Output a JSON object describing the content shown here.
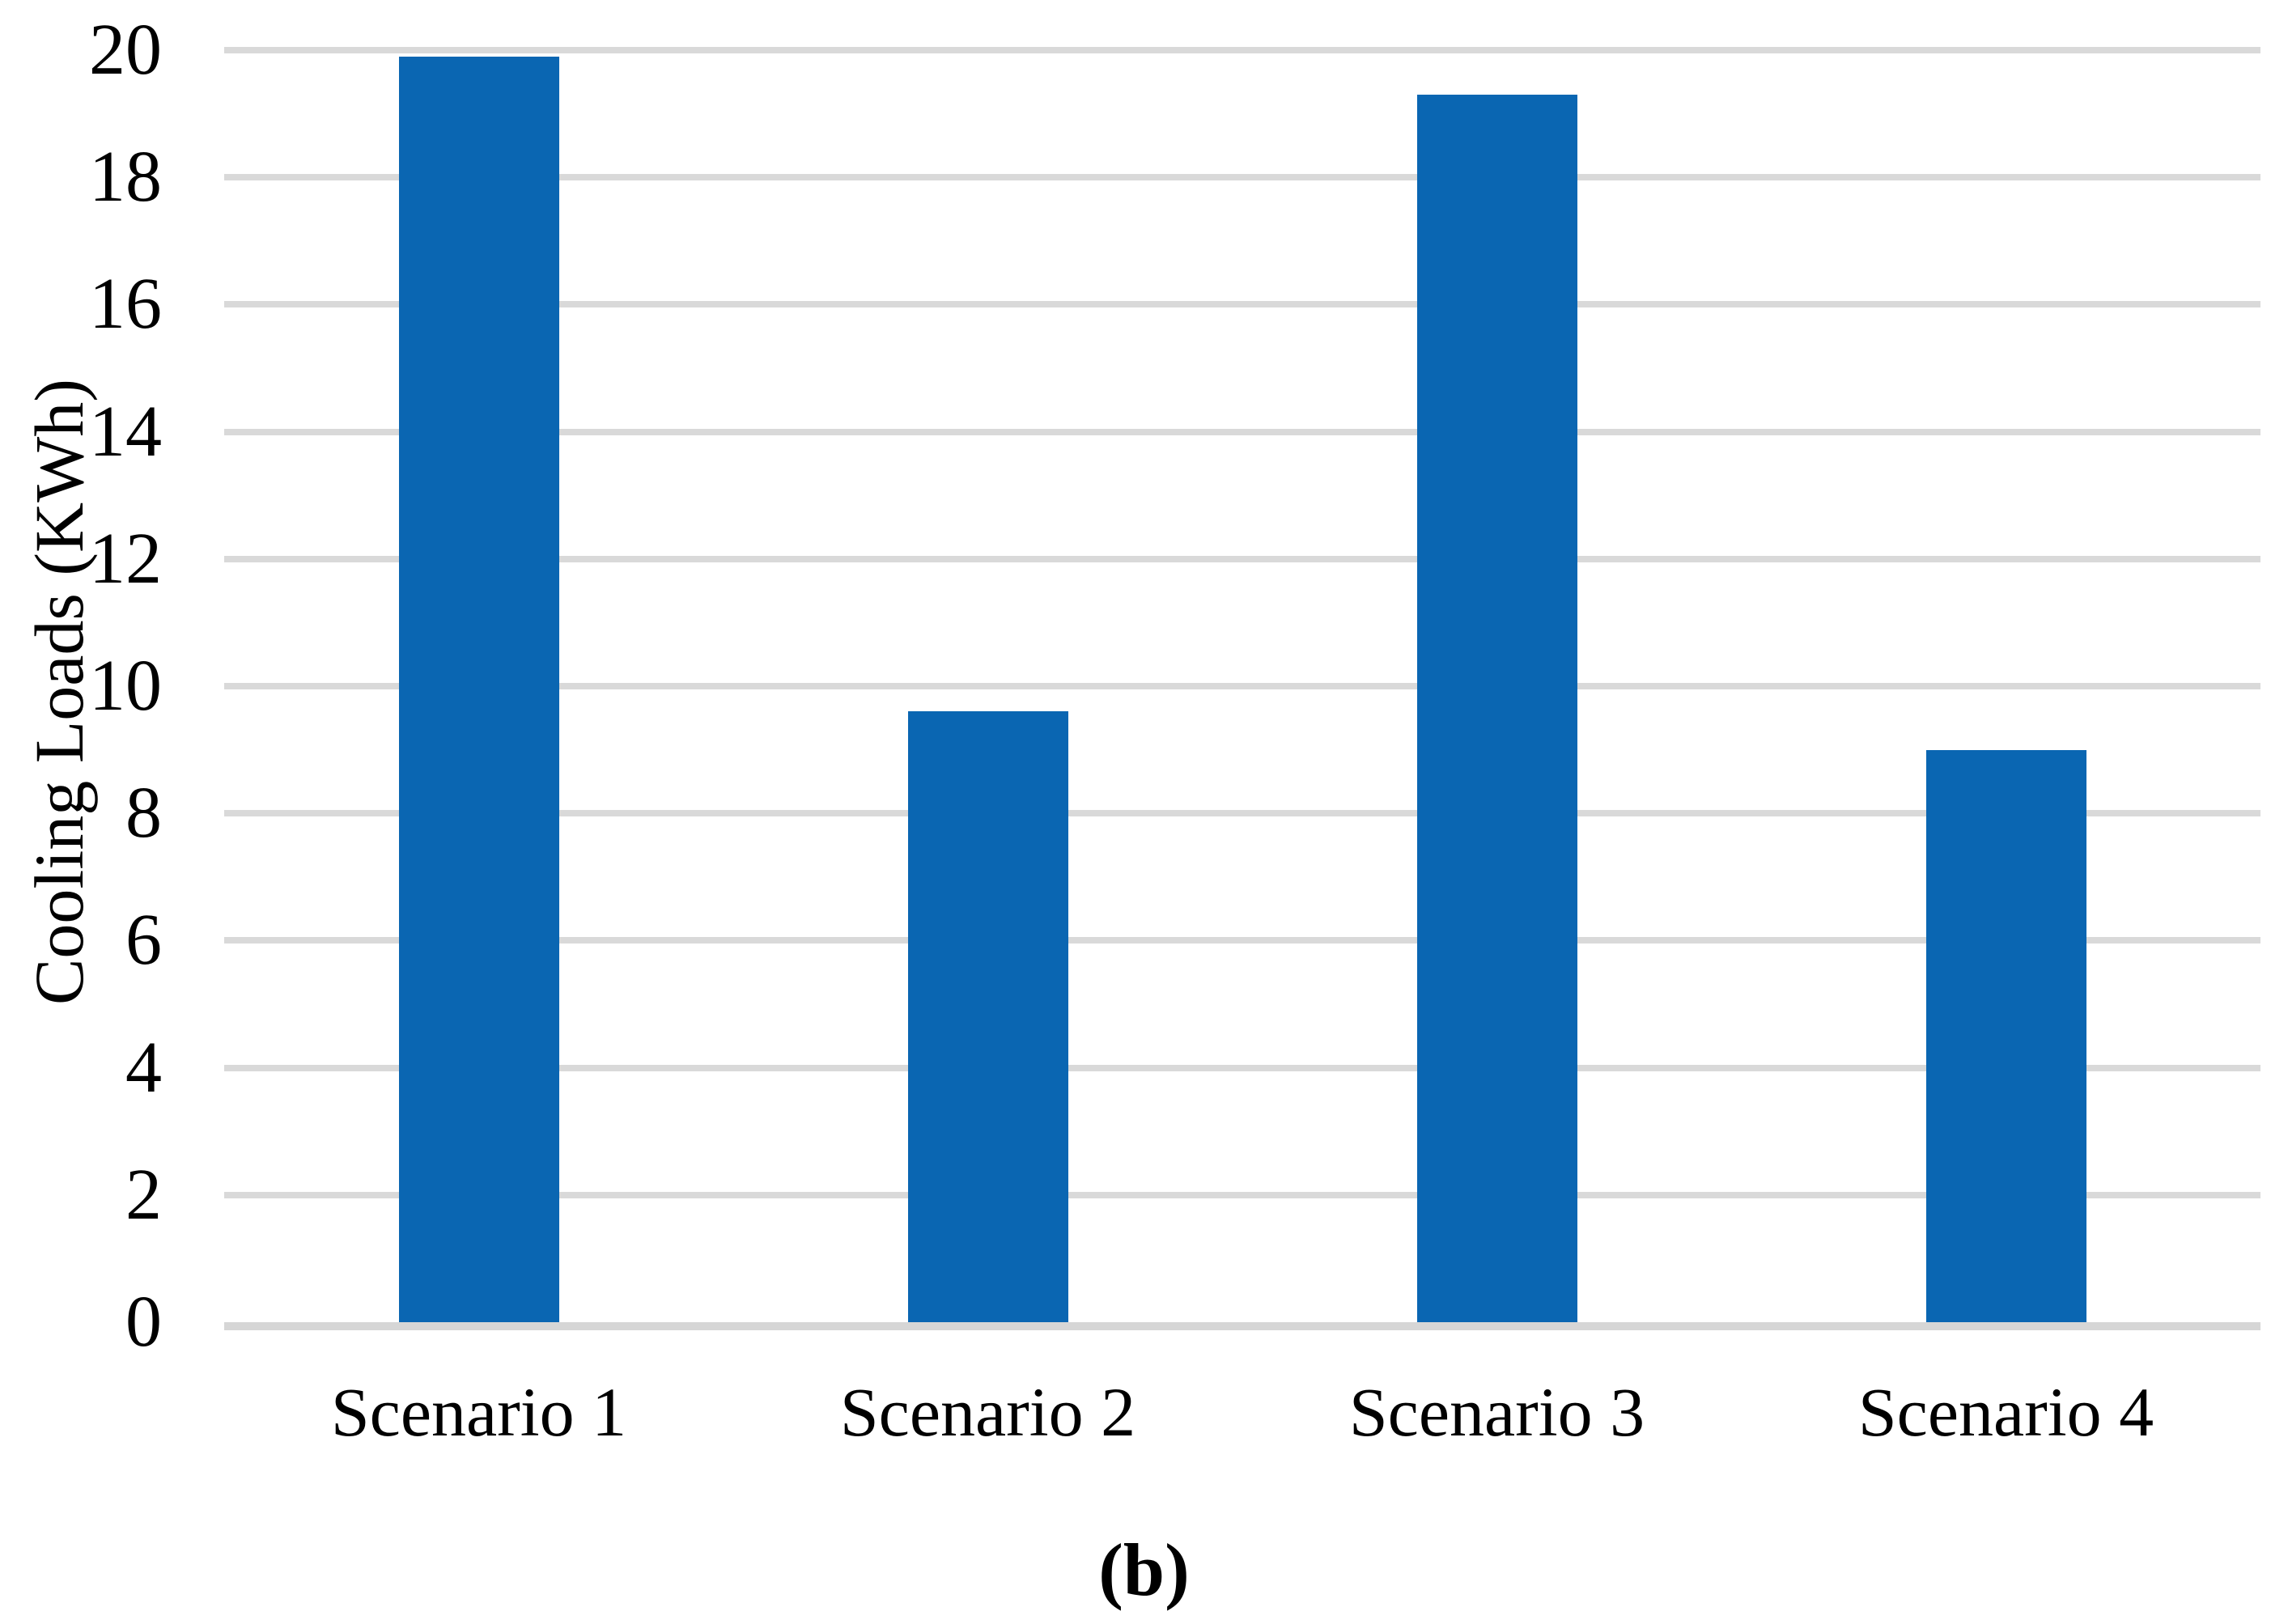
{
  "chart_data": {
    "type": "bar",
    "categories": [
      "Scenario 1",
      "Scenario 2",
      "Scenario 3",
      "Scenario 4"
    ],
    "values": [
      19.9,
      9.6,
      19.3,
      9.0
    ],
    "title": "",
    "xlabel": "",
    "ylabel": "Cooling Loads (KWh)",
    "ylim": [
      0,
      20
    ],
    "ytick_step": 2,
    "ytick_labels": [
      "0",
      "2",
      "4",
      "6",
      "8",
      "10",
      "12",
      "14",
      "16",
      "18",
      "20"
    ],
    "grid": true,
    "legend_position": "none",
    "caption": "(b)",
    "colors": {
      "bar": "#0a66b2",
      "gridline": "#d9d9d9",
      "axis_line": "#d6d6d6",
      "text": "#000000",
      "background": "#ffffff"
    }
  }
}
